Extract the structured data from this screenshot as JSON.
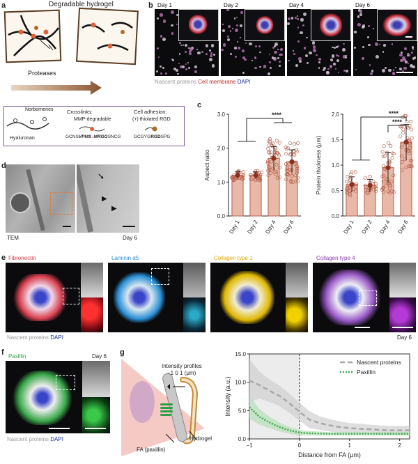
{
  "panels": {
    "a": {
      "label": "a",
      "title": "Degradable hydrogel",
      "arrow_label": "Proteases",
      "legend": {
        "polymer_label": "Hyaluronan",
        "norbornene_label": "Norbornenes",
        "crosslinks_title": "Crosslinks:",
        "crosslinks_sub": "MMP-degradable",
        "crosslink_seq_pre": "GCNS",
        "crosslink_seq_bold1": "VPMS",
        "crosslink_seq_mid": "↓",
        "crosslink_seq_bold2": "MRGG",
        "crosslink_seq_post": "SNCG",
        "adhesion_title": "Cell adhesion:",
        "adhesion_sub": "(+) thiolated RGD",
        "adhesion_seq_pre": "GCGYG",
        "adhesion_seq_bold": "RGD",
        "adhesion_seq_post": "SPG"
      }
    },
    "b": {
      "label": "b",
      "days": [
        "Day 1",
        "Day 2",
        "Day 4",
        "Day 6"
      ],
      "legend": {
        "nascent": "Nascent proteins",
        "membrane": "Cell membrane",
        "dapi": "DAPI"
      },
      "colors": {
        "nascent": "#9a9a9a",
        "membrane": "#c62828",
        "dapi": "#1a2aa0"
      }
    },
    "c": {
      "label": "c"
    },
    "d": {
      "label": "d",
      "left_caption": "TEM",
      "right_caption": "Day 6"
    },
    "e": {
      "label": "e",
      "stains": [
        {
          "name": "Fibronectin",
          "color": "#d8404f"
        },
        {
          "name": "Laminin α5",
          "color": "#2a8fd6"
        },
        {
          "name": "Collagen type 1",
          "color": "#e0a800"
        },
        {
          "name": "Collagen type 4",
          "color": "#8a3bb5"
        }
      ],
      "legend": {
        "nascent": "Nascent proteins",
        "dapi": "DAPI"
      },
      "day": "Day 6"
    },
    "f": {
      "label": "f",
      "stain": "Paxillin",
      "stain_color": "#2e9e44",
      "day": "Day 6",
      "legend": {
        "nascent": "Nascent proteins",
        "dapi": "DAPI"
      }
    },
    "g": {
      "label": "g",
      "schematic": {
        "profiles": "Intensity profiles",
        "ticks": "−1  0  1 (μm)",
        "fa": "FA (paxillin)",
        "hydrogel": "Hydrogel"
      }
    }
  },
  "chart_data": [
    {
      "id": "aspect-ratio",
      "type": "bar",
      "categories": [
        "Day 1",
        "Day 2",
        "Day 4",
        "Day 6"
      ],
      "values": [
        1.2,
        1.2,
        1.7,
        1.6
      ],
      "errors": [
        0.1,
        0.1,
        0.35,
        0.35
      ],
      "ylabel": "Aspect ratio",
      "ylim": [
        0,
        3.0
      ],
      "yticks": [
        "0.0",
        "1.0",
        "2.0",
        "3.0"
      ],
      "significance": "****",
      "bar_color": "#e8b8a8",
      "edge_color": "#b5604a"
    },
    {
      "id": "protein-thickness",
      "type": "bar",
      "categories": [
        "Day 1",
        "Day 2",
        "Day 4",
        "Day 6"
      ],
      "values": [
        0.62,
        0.6,
        0.95,
        1.45
      ],
      "errors": [
        0.15,
        0.12,
        0.3,
        0.35
      ],
      "ylabel": "Protein thickness (μm)",
      "ylim": [
        0,
        2.0
      ],
      "yticks": [
        "0.0",
        "0.5",
        "1.0",
        "1.5",
        "2.0"
      ],
      "significance": [
        "****",
        "****"
      ],
      "bar_color": "#e8b8a8",
      "edge_color": "#b5604a"
    },
    {
      "id": "intensity-profile",
      "type": "line",
      "x": [
        -1.0,
        -0.8,
        -0.6,
        -0.4,
        -0.2,
        0.0,
        0.2,
        0.4,
        0.6,
        0.8,
        1.0,
        1.2,
        1.4,
        1.6,
        1.8,
        2.0,
        2.2
      ],
      "series": [
        {
          "name": "Nascent proteins",
          "values": [
            10.3,
            9.5,
            8.5,
            7.6,
            6.3,
            4.8,
            3.4,
            2.8,
            2.4,
            2.1,
            1.9,
            1.8,
            1.7,
            1.6,
            1.5,
            1.5,
            1.5
          ],
          "color": "#a8a8a8"
        },
        {
          "name": "Paxillin",
          "values": [
            5.6,
            3.9,
            2.9,
            2.1,
            1.5,
            1.1,
            1.0,
            0.95,
            0.9,
            0.9,
            0.9,
            0.9,
            0.9,
            0.9,
            0.9,
            0.9,
            0.9
          ],
          "color": "#3aa84a"
        }
      ],
      "xlabel": "Distance from FA (μm)",
      "ylabel": "Intensity (a.u.)",
      "xlim": [
        -1.0,
        2.2
      ],
      "ylim": [
        0.0,
        15.0
      ],
      "xticks": [
        "−1",
        "0",
        "1",
        "2"
      ],
      "yticks": [
        "0.0",
        "5.0",
        "10.0",
        "15.0"
      ]
    }
  ]
}
